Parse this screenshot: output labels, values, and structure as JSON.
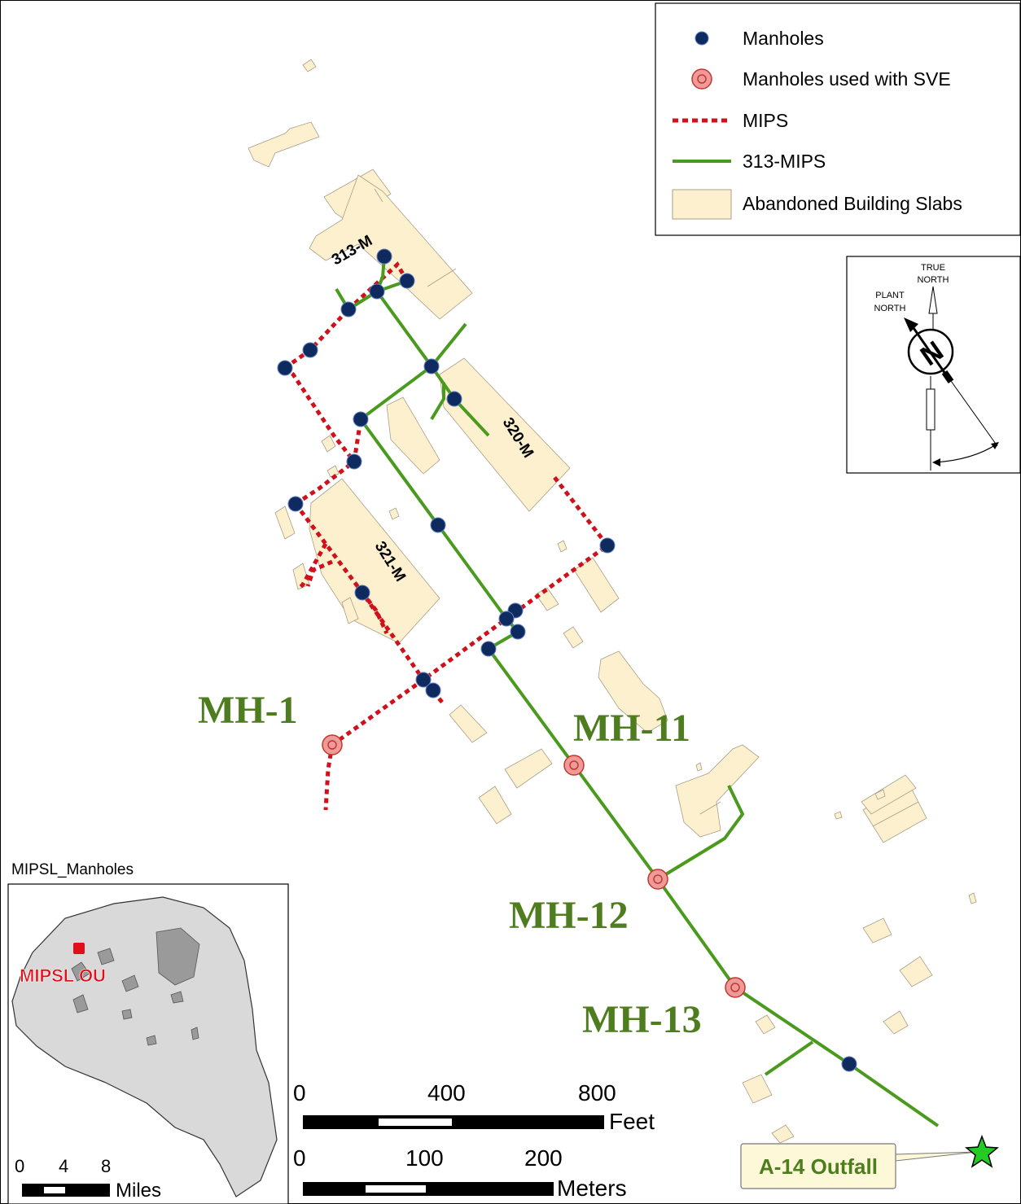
{
  "legend": {
    "manholes": "Manholes",
    "svem": "Manholes used with SVE",
    "mips": "MIPS",
    "mips313": "313-MIPS",
    "slabs": "Abandoned Building Slabs"
  },
  "north_arrow": {
    "true_north": [
      "TRUE",
      "NORTH"
    ],
    "plant_north": [
      "PLANT",
      "NORTH"
    ],
    "letter": "N"
  },
  "buildings": {
    "b313": "313-M",
    "b320": "320-M",
    "b321": "321-M"
  },
  "manhole_labels": {
    "mh1": "MH-1",
    "mh11": "MH-11",
    "mh12": "MH-12",
    "mh13": "MH-13"
  },
  "outfall": "A-14 Outfall",
  "inset": {
    "title": "MIPSL_Manholes",
    "label": "MIPSL OU",
    "scale_ticks": [
      "0",
      "4",
      "8"
    ],
    "scale_unit": "Miles"
  },
  "scale_feet": {
    "ticks": [
      "0",
      "400",
      "800"
    ],
    "unit": "Feet"
  },
  "scale_meters": {
    "ticks": [
      "0",
      "100",
      "200"
    ],
    "unit": "Meters"
  },
  "colors": {
    "manhole": "#0e2a5e",
    "sve": "#ef9a9a",
    "mips": "#d0111b",
    "mips313": "#4a9a1e",
    "slab": "#fdf0cf",
    "label_green": "#4e7d1f",
    "outfall_star": "#22cc22",
    "inset_land": "#d9d9d9",
    "inset_red": "#e0101a"
  }
}
